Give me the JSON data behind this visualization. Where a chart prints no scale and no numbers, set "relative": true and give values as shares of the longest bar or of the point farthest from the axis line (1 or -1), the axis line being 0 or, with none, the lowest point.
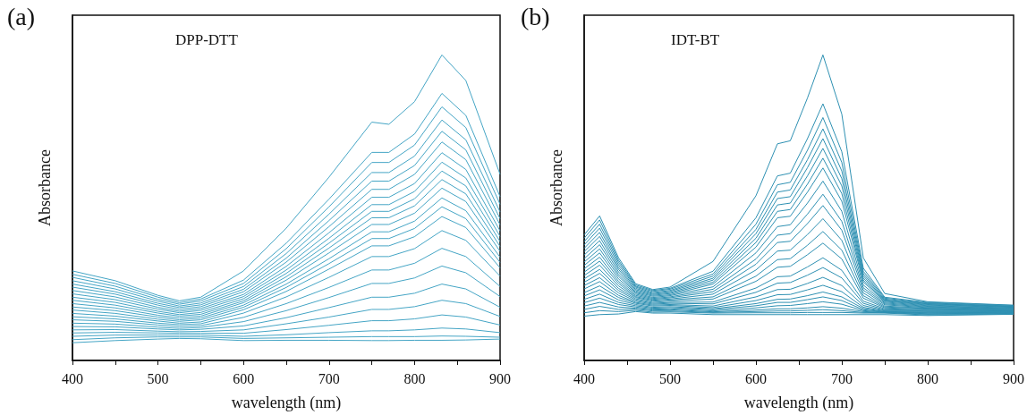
{
  "chart_data": [
    {
      "type": "line",
      "relative": true,
      "xlabel": "wavelength (nm)",
      "ylabel": "Absorbance",
      "annotations": [
        "(a)",
        "DPP-DTT"
      ],
      "x": [
        400,
        450,
        500,
        525,
        550,
        600,
        650,
        700,
        750,
        770,
        800,
        832,
        860,
        900
      ],
      "xlim": [
        400,
        900
      ],
      "xticks": [
        400,
        {
          "value": 450,
          "label": null
        },
        500,
        {
          "value": 550,
          "label": null
        },
        600,
        {
          "value": 650,
          "label": null
        },
        700,
        {
          "value": 750,
          "label": null
        },
        800,
        {
          "value": 850,
          "label": null
        },
        900
      ],
      "series": [
        {
          "color": "#45a5c5",
          "values": [
            0.293,
            0.261,
            0.213,
            0.195,
            0.207,
            0.293,
            0.433,
            0.6,
            0.78,
            0.773,
            0.847,
            1.0,
            0.916,
            0.609
          ]
        },
        {
          "color": "#45a5c5",
          "values": [
            0.282,
            0.252,
            0.207,
            0.189,
            0.201,
            0.263,
            0.384,
            0.528,
            0.681,
            0.681,
            0.741,
            0.874,
            0.802,
            0.536
          ]
        },
        {
          "color": "#45a5c5",
          "values": [
            0.272,
            0.243,
            0.2,
            0.184,
            0.195,
            0.252,
            0.366,
            0.503,
            0.648,
            0.648,
            0.705,
            0.83,
            0.762,
            0.511
          ]
        },
        {
          "color": "#45a5c5",
          "values": [
            0.261,
            0.234,
            0.194,
            0.178,
            0.188,
            0.242,
            0.35,
            0.479,
            0.615,
            0.615,
            0.669,
            0.787,
            0.722,
            0.486
          ]
        },
        {
          "color": "#45a5c5",
          "values": [
            0.25,
            0.225,
            0.187,
            0.173,
            0.182,
            0.233,
            0.335,
            0.458,
            0.587,
            0.587,
            0.638,
            0.75,
            0.689,
            0.464
          ]
        },
        {
          "color": "#45a5c5",
          "values": [
            0.24,
            0.217,
            0.181,
            0.167,
            0.176,
            0.225,
            0.322,
            0.438,
            0.56,
            0.56,
            0.609,
            0.715,
            0.657,
            0.444
          ]
        },
        {
          "color": "#45a5c5",
          "values": [
            0.229,
            0.208,
            0.174,
            0.161,
            0.17,
            0.216,
            0.308,
            0.418,
            0.534,
            0.534,
            0.579,
            0.68,
            0.625,
            0.424
          ]
        },
        {
          "color": "#45a5c5",
          "values": [
            0.218,
            0.199,
            0.168,
            0.156,
            0.164,
            0.209,
            0.296,
            0.4,
            0.51,
            0.51,
            0.553,
            0.649,
            0.597,
            0.406
          ]
        },
        {
          "color": "#45a5c5",
          "values": [
            0.207,
            0.19,
            0.161,
            0.15,
            0.157,
            0.202,
            0.285,
            0.384,
            0.488,
            0.488,
            0.529,
            0.62,
            0.571,
            0.389
          ]
        },
        {
          "color": "#45a5c5",
          "values": [
            0.197,
            0.181,
            0.155,
            0.145,
            0.151,
            0.195,
            0.274,
            0.368,
            0.467,
            0.467,
            0.506,
            0.592,
            0.545,
            0.373
          ]
        },
        {
          "color": "#45a5c5",
          "values": [
            0.186,
            0.172,
            0.148,
            0.139,
            0.145,
            0.189,
            0.263,
            0.352,
            0.445,
            0.445,
            0.482,
            0.564,
            0.52,
            0.357
          ]
        },
        {
          "color": "#45a5c5",
          "values": [
            0.175,
            0.163,
            0.142,
            0.133,
            0.139,
            0.181,
            0.25,
            0.333,
            0.421,
            0.421,
            0.456,
            0.532,
            0.49,
            0.338
          ]
        },
        {
          "color": "#45a5c5",
          "values": [
            0.165,
            0.154,
            0.135,
            0.128,
            0.133,
            0.174,
            0.239,
            0.317,
            0.399,
            0.399,
            0.432,
            0.503,
            0.464,
            0.321
          ]
        },
        {
          "color": "#45a5c5",
          "values": [
            0.154,
            0.145,
            0.129,
            0.122,
            0.126,
            0.166,
            0.226,
            0.299,
            0.375,
            0.375,
            0.405,
            0.471,
            0.435,
            0.303
          ]
        },
        {
          "color": "#45a5c5",
          "values": [
            0.143,
            0.136,
            0.122,
            0.117,
            0.12,
            0.155,
            0.208,
            0.272,
            0.34,
            0.34,
            0.366,
            0.425,
            0.393,
            0.276
          ]
        },
        {
          "color": "#45a5c5",
          "values": [
            0.133,
            0.128,
            0.116,
            0.111,
            0.114,
            0.141,
            0.186,
            0.239,
            0.296,
            0.296,
            0.318,
            0.367,
            0.34,
            0.242
          ]
        },
        {
          "color": "#45a5c5",
          "values": [
            0.122,
            0.119,
            0.109,
            0.105,
            0.108,
            0.127,
            0.163,
            0.206,
            0.252,
            0.252,
            0.27,
            0.309,
            0.287,
            0.209
          ]
        },
        {
          "color": "#45a5c5",
          "values": [
            0.111,
            0.11,
            0.103,
            0.1,
            0.102,
            0.113,
            0.14,
            0.173,
            0.207,
            0.207,
            0.22,
            0.25,
            0.234,
            0.174
          ]
        },
        {
          "color": "#45a5c5",
          "values": [
            0.1,
            0.101,
            0.096,
            0.094,
            0.095,
            0.1,
            0.12,
            0.142,
            0.167,
            0.167,
            0.176,
            0.197,
            0.186,
            0.144
          ]
        },
        {
          "color": "#45a5c5",
          "values": [
            0.09,
            0.092,
            0.09,
            0.089,
            0.089,
            0.089,
            0.101,
            0.115,
            0.13,
            0.13,
            0.136,
            0.149,
            0.142,
            0.116
          ]
        },
        {
          "color": "#45a5c5",
          "values": [
            0.079,
            0.083,
            0.083,
            0.083,
            0.083,
            0.079,
            0.084,
            0.091,
            0.097,
            0.097,
            0.1,
            0.106,
            0.103,
            0.091
          ]
        },
        {
          "color": "#45a5c5",
          "values": [
            0.068,
            0.074,
            0.077,
            0.077,
            0.077,
            0.072,
            0.074,
            0.076,
            0.078,
            0.078,
            0.078,
            0.08,
            0.079,
            0.076
          ]
        },
        {
          "color": "#45a5c5",
          "values": [
            0.058,
            0.065,
            0.07,
            0.072,
            0.071,
            0.065,
            0.066,
            0.066,
            0.065,
            0.065,
            0.066,
            0.066,
            0.067,
            0.07
          ]
        }
      ]
    },
    {
      "type": "line",
      "relative": true,
      "xlabel": "wavelength (nm)",
      "ylabel": "Absorbance",
      "annotations": [
        "(b)",
        "IDT-BT"
      ],
      "x": [
        400,
        418,
        440,
        460,
        480,
        500,
        550,
        600,
        625,
        640,
        660,
        678,
        700,
        725,
        750,
        800,
        900
      ],
      "xlim": [
        400,
        900
      ],
      "xticks": [
        400,
        {
          "value": 450,
          "label": null
        },
        500,
        {
          "value": 550,
          "label": null
        },
        600,
        {
          "value": 650,
          "label": null
        },
        700,
        {
          "value": 750,
          "label": null
        },
        800,
        {
          "value": 850,
          "label": null
        },
        900
      ],
      "series": [
        {
          "color": "#2e90b2",
          "values": [
            0.411,
            0.473,
            0.336,
            0.251,
            0.232,
            0.24,
            0.324,
            0.539,
            0.709,
            0.719,
            0.859,
            1.0,
            0.806,
            0.336,
            0.219,
            0.192,
            0.181
          ]
        },
        {
          "color": "#2e90b2",
          "values": [
            0.4,
            0.46,
            0.328,
            0.247,
            0.229,
            0.236,
            0.292,
            0.467,
            0.604,
            0.613,
            0.726,
            0.84,
            0.683,
            0.302,
            0.207,
            0.19,
            0.18
          ]
        },
        {
          "color": "#2e90b2",
          "values": [
            0.389,
            0.446,
            0.321,
            0.243,
            0.226,
            0.233,
            0.283,
            0.446,
            0.575,
            0.583,
            0.688,
            0.795,
            0.648,
            0.292,
            0.204,
            0.188,
            0.178
          ]
        },
        {
          "color": "#2e90b2",
          "values": [
            0.378,
            0.433,
            0.313,
            0.24,
            0.222,
            0.229,
            0.276,
            0.429,
            0.551,
            0.558,
            0.657,
            0.758,
            0.62,
            0.284,
            0.201,
            0.186,
            0.177
          ]
        },
        {
          "color": "#2e90b2",
          "values": [
            0.367,
            0.419,
            0.305,
            0.236,
            0.219,
            0.226,
            0.269,
            0.415,
            0.53,
            0.536,
            0.631,
            0.726,
            0.595,
            0.277,
            0.198,
            0.185,
            0.176
          ]
        },
        {
          "color": "#2e90b2",
          "values": [
            0.356,
            0.406,
            0.298,
            0.232,
            0.216,
            0.222,
            0.263,
            0.4,
            0.509,
            0.515,
            0.604,
            0.694,
            0.571,
            0.27,
            0.196,
            0.183,
            0.175
          ]
        },
        {
          "color": "#2e90b2",
          "values": [
            0.345,
            0.392,
            0.29,
            0.228,
            0.213,
            0.219,
            0.256,
            0.386,
            0.488,
            0.494,
            0.577,
            0.662,
            0.546,
            0.263,
            0.194,
            0.181,
            0.174
          ]
        },
        {
          "color": "#2e90b2",
          "values": [
            0.333,
            0.379,
            0.282,
            0.224,
            0.21,
            0.215,
            0.25,
            0.371,
            0.467,
            0.472,
            0.551,
            0.63,
            0.521,
            0.257,
            0.191,
            0.179,
            0.172
          ]
        },
        {
          "color": "#2e90b2",
          "values": [
            0.322,
            0.365,
            0.275,
            0.221,
            0.206,
            0.212,
            0.241,
            0.352,
            0.438,
            0.444,
            0.515,
            0.587,
            0.488,
            0.247,
            0.188,
            0.177,
            0.171
          ]
        },
        {
          "color": "#2e90b2",
          "values": [
            0.311,
            0.352,
            0.267,
            0.217,
            0.203,
            0.208,
            0.233,
            0.332,
            0.41,
            0.415,
            0.479,
            0.544,
            0.455,
            0.238,
            0.185,
            0.175,
            0.17
          ]
        },
        {
          "color": "#2e90b2",
          "values": [
            0.3,
            0.338,
            0.259,
            0.213,
            0.2,
            0.205,
            0.225,
            0.315,
            0.386,
            0.39,
            0.448,
            0.507,
            0.426,
            0.23,
            0.182,
            0.173,
            0.169
          ]
        },
        {
          "color": "#2e90b2",
          "values": [
            0.289,
            0.325,
            0.252,
            0.209,
            0.197,
            0.201,
            0.217,
            0.296,
            0.358,
            0.361,
            0.412,
            0.464,
            0.393,
            0.221,
            0.178,
            0.171,
            0.167
          ]
        },
        {
          "color": "#2e90b2",
          "values": [
            0.278,
            0.312,
            0.244,
            0.206,
            0.194,
            0.198,
            0.208,
            0.276,
            0.33,
            0.333,
            0.377,
            0.422,
            0.361,
            0.212,
            0.175,
            0.17,
            0.166
          ]
        },
        {
          "color": "#2e90b2",
          "values": [
            0.267,
            0.298,
            0.236,
            0.202,
            0.19,
            0.194,
            0.201,
            0.259,
            0.305,
            0.308,
            0.346,
            0.384,
            0.332,
            0.204,
            0.172,
            0.168,
            0.165
          ]
        },
        {
          "color": "#2e90b2",
          "values": [
            0.256,
            0.285,
            0.229,
            0.198,
            0.187,
            0.19,
            0.191,
            0.237,
            0.274,
            0.276,
            0.306,
            0.336,
            0.295,
            0.194,
            0.169,
            0.166,
            0.164
          ]
        },
        {
          "color": "#2e90b2",
          "values": [
            0.245,
            0.271,
            0.221,
            0.194,
            0.184,
            0.187,
            0.185,
            0.223,
            0.253,
            0.255,
            0.279,
            0.304,
            0.27,
            0.187,
            0.166,
            0.164,
            0.162
          ]
        },
        {
          "color": "#2e90b2",
          "values": [
            0.234,
            0.258,
            0.213,
            0.19,
            0.181,
            0.183,
            0.178,
            0.208,
            0.232,
            0.233,
            0.252,
            0.272,
            0.245,
            0.18,
            0.164,
            0.162,
            0.161
          ]
        },
        {
          "color": "#2e90b2",
          "values": [
            0.222,
            0.244,
            0.206,
            0.187,
            0.178,
            0.18,
            0.173,
            0.196,
            0.215,
            0.216,
            0.231,
            0.246,
            0.225,
            0.174,
            0.162,
            0.16,
            0.16
          ]
        },
        {
          "color": "#2e90b2",
          "values": [
            0.211,
            0.231,
            0.198,
            0.183,
            0.174,
            0.176,
            0.169,
            0.186,
            0.2,
            0.201,
            0.212,
            0.224,
            0.208,
            0.17,
            0.16,
            0.158,
            0.159
          ]
        },
        {
          "color": "#2e90b2",
          "values": [
            0.2,
            0.217,
            0.19,
            0.179,
            0.171,
            0.173,
            0.166,
            0.179,
            0.19,
            0.19,
            0.199,
            0.208,
            0.196,
            0.166,
            0.159,
            0.156,
            0.157
          ]
        },
        {
          "color": "#2e90b2",
          "values": [
            0.189,
            0.204,
            0.183,
            0.175,
            0.168,
            0.169,
            0.162,
            0.172,
            0.179,
            0.18,
            0.186,
            0.192,
            0.184,
            0.163,
            0.158,
            0.155,
            0.156
          ]
        },
        {
          "color": "#2e90b2",
          "values": [
            0.178,
            0.19,
            0.175,
            0.171,
            0.165,
            0.166,
            0.159,
            0.165,
            0.169,
            0.169,
            0.172,
            0.176,
            0.171,
            0.16,
            0.157,
            0.153,
            0.155
          ]
        },
        {
          "color": "#2e90b2",
          "values": [
            0.167,
            0.177,
            0.167,
            0.168,
            0.162,
            0.162,
            0.157,
            0.16,
            0.162,
            0.162,
            0.164,
            0.166,
            0.163,
            0.157,
            0.156,
            0.151,
            0.154
          ]
        },
        {
          "color": "#2e90b2",
          "values": [
            0.156,
            0.163,
            0.16,
            0.164,
            0.158,
            0.159,
            0.155,
            0.156,
            0.156,
            0.156,
            0.157,
            0.157,
            0.157,
            0.155,
            0.155,
            0.149,
            0.152
          ]
        },
        {
          "color": "#2e90b2",
          "values": [
            0.145,
            0.15,
            0.152,
            0.16,
            0.155,
            0.155,
            0.15,
            0.15,
            0.15,
            0.15,
            0.15,
            0.15,
            0.15,
            0.15,
            0.15,
            0.147,
            0.151
          ]
        }
      ]
    }
  ]
}
